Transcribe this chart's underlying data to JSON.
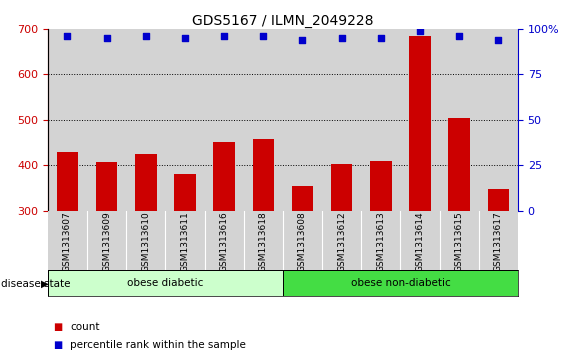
{
  "title": "GDS5167 / ILMN_2049228",
  "samples": [
    "GSM1313607",
    "GSM1313609",
    "GSM1313610",
    "GSM1313611",
    "GSM1313616",
    "GSM1313618",
    "GSM1313608",
    "GSM1313612",
    "GSM1313613",
    "GSM1313614",
    "GSM1313615",
    "GSM1313617"
  ],
  "counts": [
    430,
    408,
    425,
    380,
    450,
    458,
    353,
    403,
    410,
    685,
    505,
    347
  ],
  "percentile_ranks": [
    96,
    95,
    96,
    95,
    96,
    96,
    94,
    95,
    95,
    99,
    96,
    94
  ],
  "bar_color": "#cc0000",
  "dot_color": "#0000cc",
  "ylim_left": [
    300,
    700
  ],
  "ylim_right": [
    0,
    100
  ],
  "yticks_left": [
    300,
    400,
    500,
    600,
    700
  ],
  "yticks_right": [
    0,
    25,
    50,
    75,
    100
  ],
  "groups": [
    {
      "label": "obese diabetic",
      "start": 0,
      "end": 6,
      "color": "#ccffcc"
    },
    {
      "label": "obese non-diabetic",
      "start": 6,
      "end": 12,
      "color": "#44dd44"
    }
  ],
  "dotted_gridlines": [
    400,
    500,
    600
  ],
  "tick_area_color": "#d3d3d3",
  "group_box_color1": "#ccffcc",
  "group_box_color2": "#44dd44"
}
